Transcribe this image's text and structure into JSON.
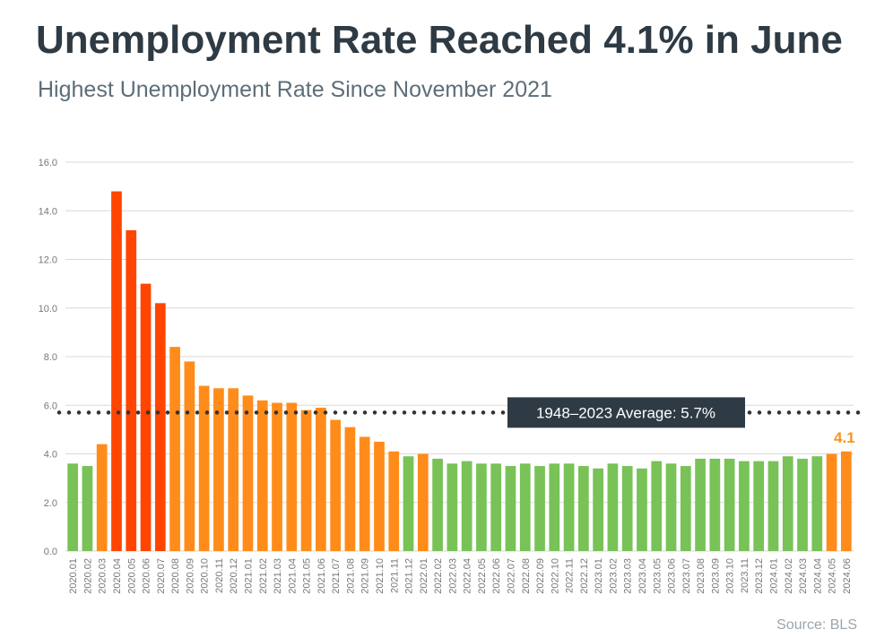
{
  "header": {
    "title": "Unemployment Rate Reached 4.1% in June",
    "subtitle": "Highest Unemployment Rate Since November 2021"
  },
  "footer": {
    "source": "Source: BLS"
  },
  "colors": {
    "high": "#ff4500",
    "mid": "#ff8c1a",
    "low": "#78c257",
    "grid": "#d9d9d9",
    "average_line": "#333333",
    "average_box": "#2e3a44",
    "end_label": "#f7941d"
  },
  "chart_data": {
    "type": "bar",
    "title": "Unemployment Rate Reached 4.1% in June",
    "subtitle": "Highest Unemployment Rate Since November 2021",
    "xlabel": "",
    "ylabel": "",
    "ylim": [
      0,
      16
    ],
    "yticks": [
      "0.0",
      "2.0",
      "4.0",
      "6.0",
      "8.0",
      "10.0",
      "12.0",
      "14.0",
      "16.0"
    ],
    "grid": true,
    "categories": [
      "2020.01",
      "2020.02",
      "2020.03",
      "2020.04",
      "2020.05",
      "2020.06",
      "2020.07",
      "2020.08",
      "2020.09",
      "2020.10",
      "2020.11",
      "2020.12",
      "2021.01",
      "2021.02",
      "2021.03",
      "2021.04",
      "2021.05",
      "2021.06",
      "2021.07",
      "2021.08",
      "2021.09",
      "2021.10",
      "2021.11",
      "2021.12",
      "2022.01",
      "2022.02",
      "2022.03",
      "2022.04",
      "2022.05",
      "2022.06",
      "2022.07",
      "2022.08",
      "2022.09",
      "2022.10",
      "2022.11",
      "2022.12",
      "2023.01",
      "2023.02",
      "2023.03",
      "2023.04",
      "2023.05",
      "2023.06",
      "2023.07",
      "2023.08",
      "2023.09",
      "2023.10",
      "2023.11",
      "2023.12",
      "2024.01",
      "2024.02",
      "2024.03",
      "2024.04",
      "2024.05",
      "2024.06"
    ],
    "values": [
      3.6,
      3.5,
      4.4,
      14.8,
      13.2,
      11.0,
      10.2,
      8.4,
      7.8,
      6.8,
      6.7,
      6.7,
      6.4,
      6.2,
      6.1,
      6.1,
      5.8,
      5.9,
      5.4,
      5.1,
      4.7,
      4.5,
      4.1,
      3.9,
      4.0,
      3.8,
      3.6,
      3.7,
      3.6,
      3.6,
      3.5,
      3.6,
      3.5,
      3.6,
      3.6,
      3.5,
      3.4,
      3.6,
      3.5,
      3.4,
      3.7,
      3.6,
      3.5,
      3.8,
      3.8,
      3.8,
      3.7,
      3.7,
      3.7,
      3.9,
      3.8,
      3.9,
      4.0,
      4.1
    ],
    "bar_colors": [
      "low",
      "low",
      "mid",
      "high",
      "high",
      "high",
      "high",
      "mid",
      "mid",
      "mid",
      "mid",
      "mid",
      "mid",
      "mid",
      "mid",
      "mid",
      "mid",
      "mid",
      "mid",
      "mid",
      "mid",
      "mid",
      "mid",
      "low",
      "mid",
      "low",
      "low",
      "low",
      "low",
      "low",
      "low",
      "low",
      "low",
      "low",
      "low",
      "low",
      "low",
      "low",
      "low",
      "low",
      "low",
      "low",
      "low",
      "low",
      "low",
      "low",
      "low",
      "low",
      "low",
      "low",
      "low",
      "low",
      "mid",
      "mid"
    ],
    "reference_line": {
      "label": "1948–2023 Average: 5.7%",
      "value": 5.7
    },
    "end_label": "4.1"
  }
}
